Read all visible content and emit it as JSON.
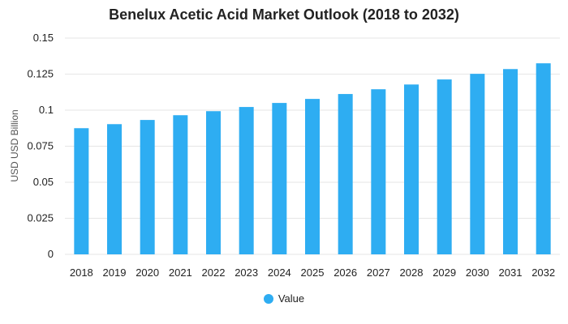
{
  "chart_data": {
    "type": "bar",
    "title": "Benelux Acetic Acid Market Outlook (2018 to 2032)",
    "xlabel": "",
    "ylabel": "USD USD Billion",
    "categories": [
      "2018",
      "2019",
      "2020",
      "2021",
      "2022",
      "2023",
      "2024",
      "2025",
      "2026",
      "2027",
      "2028",
      "2029",
      "2030",
      "2031",
      "2032"
    ],
    "series": [
      {
        "name": "Value",
        "values": [
          0.0875,
          0.0903,
          0.0932,
          0.0965,
          0.0993,
          0.1022,
          0.105,
          0.1078,
          0.1112,
          0.1145,
          0.1178,
          0.1213,
          0.1252,
          0.1285,
          0.1325
        ]
      }
    ],
    "ylim": [
      0,
      0.15
    ],
    "yticks": [
      "0",
      "0.025",
      "0.05",
      "0.075",
      "0.1",
      "0.125",
      "0.15"
    ],
    "grid": true,
    "legend_position": "bottom-center",
    "colors": {
      "bar": "#2eadf2",
      "grid": "#e6e6e6"
    }
  }
}
